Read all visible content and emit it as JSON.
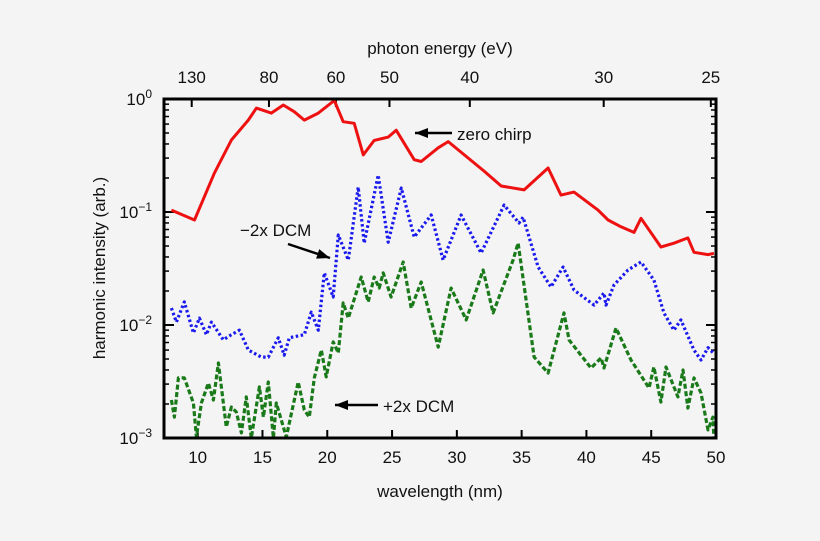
{
  "chart_data": {
    "type": "line",
    "title": "",
    "xlabel": "wavelength (nm)",
    "ylabel": "harmonic intensity (arb.)",
    "top_xlabel": "photon energy (eV)",
    "xlim": [
      7.4,
      50
    ],
    "ylim": [
      0.001,
      1
    ],
    "yscale": "log",
    "grid": false,
    "x_ticks": [
      10,
      15,
      20,
      25,
      30,
      35,
      40,
      45,
      50
    ],
    "y_ticks": [
      {
        "value": 1,
        "base": "10",
        "exp": "0"
      },
      {
        "value": 0.1,
        "base": "10",
        "exp": "−1"
      },
      {
        "value": 0.01,
        "base": "10",
        "exp": "−2"
      },
      {
        "value": 0.001,
        "base": "10",
        "exp": "−3"
      }
    ],
    "top_ticks_eV": [
      130,
      80,
      60,
      50,
      40,
      30,
      25
    ],
    "series": [
      {
        "name": "zero chirp",
        "color": "#ee1111",
        "style": "solid",
        "x": [
          7.97,
          9.75,
          11.29,
          12.6,
          13.91,
          14.53,
          15.68,
          16.61,
          17.46,
          18.23,
          19.31,
          20.54,
          21.23,
          22.08,
          22.78,
          23.62,
          24.7,
          25.32,
          26.71,
          27.25,
          28.56,
          29.33,
          32.1,
          33.42,
          35.19,
          37.04,
          38.04,
          39.04,
          40.89,
          41.67,
          42.67,
          43.67,
          44.21,
          45.75,
          46.75,
          47.83,
          48.3,
          49.38,
          49.84
        ],
        "y": [
          0.104,
          0.085,
          0.221,
          0.434,
          0.652,
          0.83,
          0.75,
          0.885,
          0.77,
          0.65,
          0.75,
          0.97,
          0.63,
          0.61,
          0.32,
          0.43,
          0.46,
          0.53,
          0.29,
          0.28,
          0.37,
          0.42,
          0.23,
          0.17,
          0.157,
          0.245,
          0.141,
          0.15,
          0.104,
          0.085,
          0.074,
          0.066,
          0.088,
          0.049,
          0.053,
          0.059,
          0.044,
          0.042,
          0.043
        ]
      },
      {
        "name": "−2x DCM",
        "color": "#1a1aee",
        "style": "dotted",
        "x": [
          7.97,
          8.36,
          8.97,
          9.67,
          10.13,
          10.67,
          11.06,
          11.98,
          12.6,
          13.22,
          13.91,
          14.91,
          15.45,
          16.22,
          16.68,
          17.07,
          18.23,
          18.77,
          19.31,
          19.77,
          20.46,
          20.85,
          21.62,
          22.39,
          22.85,
          23.93,
          24.7,
          25.71,
          26.71,
          28.02,
          28.94,
          30.33,
          31.87,
          33.65,
          34.8,
          35.11,
          36.27,
          37.27,
          38.2,
          39.04,
          40.59,
          41.36,
          41.51,
          42.13,
          43.21,
          44.21,
          45.21,
          45.98,
          46.75,
          47.29,
          48.3,
          48.84,
          49.38,
          49.84
        ],
        "y": [
          0.0141,
          0.0106,
          0.016,
          0.0085,
          0.0115,
          0.0082,
          0.0106,
          0.0074,
          0.0082,
          0.009,
          0.006,
          0.0052,
          0.0052,
          0.0077,
          0.0054,
          0.0077,
          0.0082,
          0.013,
          0.009,
          0.0289,
          0.0177,
          0.0626,
          0.0376,
          0.166,
          0.053,
          0.212,
          0.054,
          0.163,
          0.06,
          0.094,
          0.0376,
          0.094,
          0.0434,
          0.115,
          0.08,
          0.09,
          0.0326,
          0.0217,
          0.0326,
          0.0204,
          0.015,
          0.0192,
          0.015,
          0.0226,
          0.0307,
          0.0361,
          0.025,
          0.0128,
          0.009,
          0.0111,
          0.006,
          0.0049,
          0.0063,
          0.0056
        ]
      },
      {
        "name": "+2x DCM",
        "color": "#1a7a1a",
        "style": "dashed",
        "x": [
          7.97,
          8.2,
          8.51,
          8.97,
          9.67,
          9.9,
          10.29,
          10.83,
          11.21,
          11.6,
          12.21,
          12.6,
          12.98,
          13.37,
          13.75,
          14.14,
          14.76,
          15.07,
          15.45,
          15.84,
          16.07,
          16.84,
          17.76,
          18.23,
          18.61,
          19.0,
          19.54,
          19.92,
          20.46,
          20.85,
          21.23,
          21.62,
          22.62,
          23.16,
          23.62,
          24.01,
          24.32,
          24.93,
          25.86,
          26.48,
          27.25,
          28.56,
          29.56,
          30.72,
          32.03,
          32.8,
          34.34,
          34.73,
          35.96,
          37.04,
          38.27,
          38.66,
          40.35,
          41.13,
          41.36,
          42.28,
          43.44,
          44.83,
          45.21,
          45.75,
          46.14,
          47.06,
          47.45,
          47.83,
          48.3,
          48.84,
          49.38,
          49.76,
          49.84
        ],
        "y": [
          0.00217,
          0.00153,
          0.0034,
          0.0034,
          0.00204,
          0.00102,
          0.00204,
          0.00307,
          0.00217,
          0.00461,
          0.00125,
          0.00188,
          0.0017,
          0.00111,
          0.00231,
          0.001,
          0.00283,
          0.00153,
          0.00313,
          0.001,
          0.00204,
          0.00102,
          0.00313,
          0.00177,
          0.00153,
          0.0034,
          0.00601,
          0.00347,
          0.00708,
          0.00565,
          0.0157,
          0.0115,
          0.0266,
          0.016,
          0.0266,
          0.0212,
          0.0289,
          0.0177,
          0.0361,
          0.0141,
          0.024,
          0.00638,
          0.0212,
          0.0111,
          0.0307,
          0.0128,
          0.0376,
          0.0532,
          0.00521,
          0.00376,
          0.0128,
          0.00736,
          0.00416,
          0.00511,
          0.00416,
          0.0094,
          0.0049,
          0.00277,
          0.00425,
          0.00208,
          0.00425,
          0.00231,
          0.004,
          0.00184,
          0.0034,
          0.0025,
          0.00118,
          0.00153,
          0.00102
        ]
      }
    ],
    "annotations": [
      {
        "text": "zero chirp",
        "series": "zero chirp"
      },
      {
        "text": "−2x DCM",
        "series": "−2x DCM"
      },
      {
        "text": "+2x DCM",
        "series": "+2x DCM"
      }
    ]
  }
}
